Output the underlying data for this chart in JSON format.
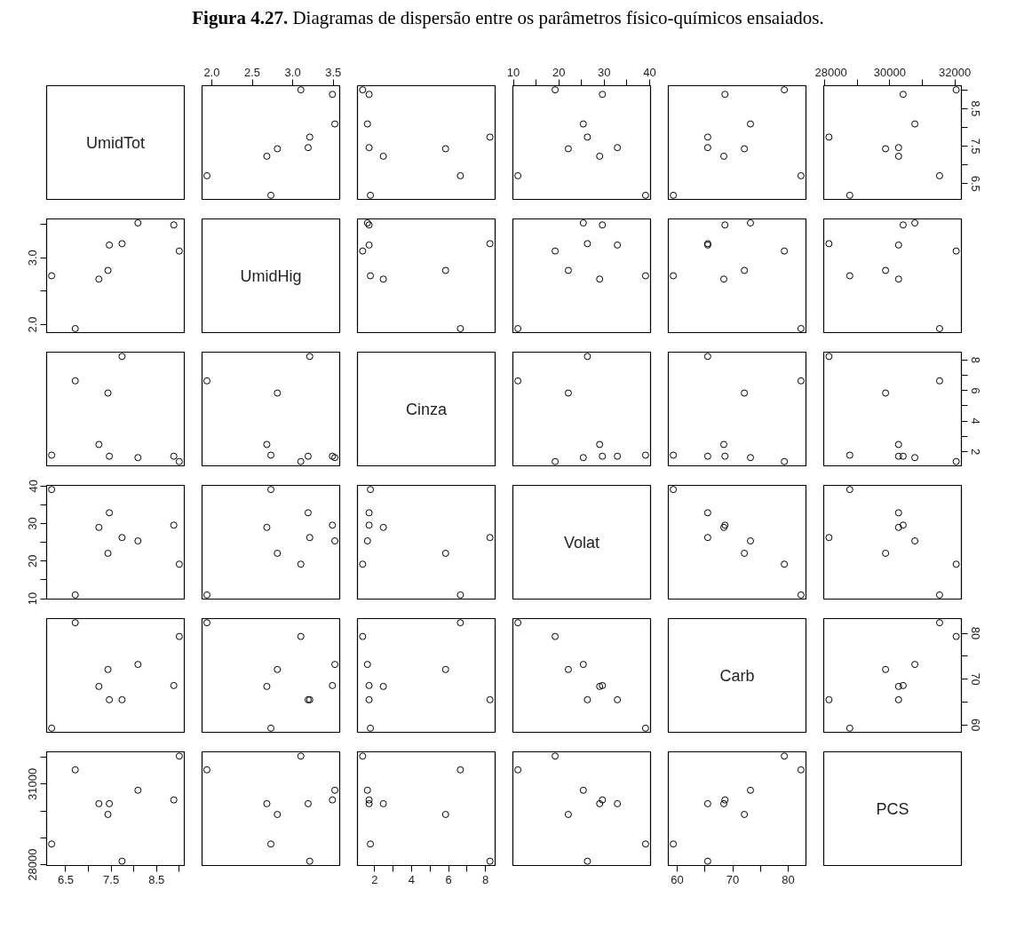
{
  "chart_data": [
    {
      "type": "other",
      "title": "Figura 4.27.",
      "subtitle": "Diagramas de dispersão entre os parâmetros físico-químicos ensaiados."
    },
    {
      "type": "other",
      "title": "UmidTot"
    },
    {
      "type": "scatter",
      "marker": "circle",
      "tick_labels": "x",
      "x": [
        3.21,
        2.73,
        2.81,
        3.19,
        2.68,
        3.49,
        3.52,
        1.94,
        3.1
      ],
      "values": [
        7.74,
        6.19,
        7.43,
        7.46,
        7.23,
        8.88,
        8.09,
        6.71,
        9.0
      ],
      "xlim": [
        1.88,
        3.58
      ],
      "ylim": [
        6.08,
        9.11
      ],
      "xticks": [
        {
          "value": 2,
          "label": "2.0"
        },
        2.5,
        {
          "value": 3,
          "label": "3.0"
        },
        3.5
      ]
    },
    {
      "type": "scatter",
      "marker": "circle",
      "x": [
        8.24,
        1.77,
        5.84,
        1.7,
        2.47,
        1.7,
        1.61,
        6.64,
        1.35
      ],
      "values": [
        7.74,
        6.19,
        7.43,
        7.46,
        7.23,
        8.88,
        8.09,
        6.71,
        9.0
      ],
      "xlim": [
        1.07,
        8.52
      ],
      "ylim": [
        6.08,
        9.11
      ]
    },
    {
      "type": "scatter",
      "marker": "circle",
      "tick_labels": "x",
      "x": [
        26.3,
        39.1,
        22.1,
        32.9,
        29.0,
        29.6,
        25.4,
        11.0,
        19.2
      ],
      "values": [
        7.74,
        6.19,
        7.43,
        7.46,
        7.23,
        8.88,
        8.09,
        6.71,
        9.0
      ],
      "xlim": [
        9.9,
        40.2
      ],
      "ylim": [
        6.08,
        9.11
      ],
      "xticks": [
        10,
        {
          "value": 15,
          "label": null
        },
        20,
        {
          "value": 25,
          "label": null
        },
        30,
        {
          "value": 35,
          "label": null
        },
        40
      ]
    },
    {
      "type": "scatter",
      "marker": "circle",
      "x": [
        65.5,
        59.3,
        72.1,
        65.5,
        68.4,
        68.6,
        73.2,
        82.3,
        79.3
      ],
      "values": [
        7.74,
        6.19,
        7.43,
        7.46,
        7.23,
        8.88,
        8.09,
        6.71,
        9.0
      ],
      "xlim": [
        58.4,
        83.2
      ],
      "ylim": [
        6.08,
        9.11
      ]
    },
    {
      "type": "scatter",
      "marker": "circle",
      "x": [
        28130,
        28770,
        29870,
        30270,
        30270,
        30410,
        30770,
        31530,
        32040
      ],
      "values": [
        7.74,
        6.19,
        7.43,
        7.46,
        7.23,
        8.88,
        8.09,
        6.71,
        9.0
      ],
      "xlim": [
        27970,
        32200
      ],
      "ylim": [
        6.08,
        9.11
      ],
      "xticks": [
        28000,
        {
          "value": 29000,
          "label": null
        },
        30000,
        {
          "value": 31000,
          "label": null
        },
        32000
      ],
      "yticks": [
        6.5,
        {
          "value": 7,
          "label": null
        },
        7.5,
        {
          "value": 8,
          "label": null
        },
        8.5,
        {
          "value": 9,
          "label": null
        }
      ]
    },
    {
      "type": "scatter",
      "marker": "circle",
      "tick_labels": "y",
      "x": [
        7.74,
        6.19,
        7.43,
        7.46,
        7.23,
        8.88,
        8.09,
        6.71,
        9.0
      ],
      "values": [
        3.21,
        2.73,
        2.81,
        3.19,
        2.68,
        3.49,
        3.52,
        1.94,
        3.1
      ],
      "xlim": [
        6.08,
        9.11
      ],
      "ylim": [
        1.88,
        3.58
      ],
      "yticks": [
        {
          "value": 2,
          "label": "2.0"
        },
        {
          "value": 2.5,
          "label": null
        },
        {
          "value": 3,
          "label": "3.0"
        },
        {
          "value": 3.5,
          "label": null
        }
      ]
    },
    {
      "type": "other",
      "title": "UmidHig"
    },
    {
      "type": "scatter",
      "marker": "circle",
      "x": [
        8.24,
        1.77,
        5.84,
        1.7,
        2.47,
        1.7,
        1.61,
        6.64,
        1.35
      ],
      "values": [
        3.21,
        2.73,
        2.81,
        3.19,
        2.68,
        3.49,
        3.52,
        1.94,
        3.1
      ],
      "xlim": [
        1.07,
        8.52
      ],
      "ylim": [
        1.88,
        3.58
      ]
    },
    {
      "type": "scatter",
      "marker": "circle",
      "x": [
        26.3,
        39.1,
        22.1,
        32.9,
        29.0,
        29.6,
        25.4,
        11.0,
        19.2
      ],
      "values": [
        3.21,
        2.73,
        2.81,
        3.19,
        2.68,
        3.49,
        3.52,
        1.94,
        3.1
      ],
      "xlim": [
        9.9,
        40.2
      ],
      "ylim": [
        1.88,
        3.58
      ]
    },
    {
      "type": "scatter",
      "marker": "circle",
      "x": [
        65.5,
        59.3,
        72.1,
        65.5,
        68.4,
        68.6,
        73.2,
        82.3,
        79.3
      ],
      "values": [
        3.21,
        2.73,
        2.81,
        3.19,
        2.68,
        3.49,
        3.52,
        1.94,
        3.1
      ],
      "xlim": [
        58.4,
        83.2
      ],
      "ylim": [
        1.88,
        3.58
      ]
    },
    {
      "type": "scatter",
      "marker": "circle",
      "x": [
        28130,
        28770,
        29870,
        30270,
        30270,
        30410,
        30770,
        31530,
        32040
      ],
      "values": [
        3.21,
        2.73,
        2.81,
        3.19,
        2.68,
        3.49,
        3.52,
        1.94,
        3.1
      ],
      "xlim": [
        27970,
        32200
      ],
      "ylim": [
        1.88,
        3.58
      ]
    },
    {
      "type": "scatter",
      "marker": "circle",
      "x": [
        7.74,
        6.19,
        7.43,
        7.46,
        7.23,
        8.88,
        8.09,
        6.71,
        9.0
      ],
      "values": [
        8.24,
        1.77,
        5.84,
        1.7,
        2.47,
        1.7,
        1.61,
        6.64,
        1.35
      ],
      "xlim": [
        6.08,
        9.11
      ],
      "ylim": [
        1.07,
        8.52
      ]
    },
    {
      "type": "scatter",
      "marker": "circle",
      "x": [
        3.21,
        2.73,
        2.81,
        3.19,
        2.68,
        3.49,
        3.52,
        1.94,
        3.1
      ],
      "values": [
        8.24,
        1.77,
        5.84,
        1.7,
        2.47,
        1.7,
        1.61,
        6.64,
        1.35
      ],
      "xlim": [
        1.88,
        3.58
      ],
      "ylim": [
        1.07,
        8.52
      ]
    },
    {
      "type": "other",
      "title": "Cinza"
    },
    {
      "type": "scatter",
      "marker": "circle",
      "x": [
        26.3,
        39.1,
        22.1,
        32.9,
        29.0,
        29.6,
        25.4,
        11.0,
        19.2
      ],
      "values": [
        8.24,
        1.77,
        5.84,
        1.7,
        2.47,
        1.7,
        1.61,
        6.64,
        1.35
      ],
      "xlim": [
        9.9,
        40.2
      ],
      "ylim": [
        1.07,
        8.52
      ]
    },
    {
      "type": "scatter",
      "marker": "circle",
      "x": [
        65.5,
        59.3,
        72.1,
        65.5,
        68.4,
        68.6,
        73.2,
        82.3,
        79.3
      ],
      "values": [
        8.24,
        1.77,
        5.84,
        1.7,
        2.47,
        1.7,
        1.61,
        6.64,
        1.35
      ],
      "xlim": [
        58.4,
        83.2
      ],
      "ylim": [
        1.07,
        8.52
      ]
    },
    {
      "type": "scatter",
      "marker": "circle",
      "tick_labels": "y",
      "x": [
        28130,
        28770,
        29870,
        30270,
        30270,
        30410,
        30770,
        31530,
        32040
      ],
      "values": [
        8.24,
        1.77,
        5.84,
        1.7,
        2.47,
        1.7,
        1.61,
        6.64,
        1.35
      ],
      "xlim": [
        27970,
        32200
      ],
      "ylim": [
        1.07,
        8.52
      ],
      "yticks": [
        2,
        {
          "value": 3,
          "label": null
        },
        4,
        {
          "value": 5,
          "label": null
        },
        6,
        {
          "value": 7,
          "label": null
        },
        8
      ]
    },
    {
      "type": "scatter",
      "marker": "circle",
      "tick_labels": "y",
      "x": [
        7.74,
        6.19,
        7.43,
        7.46,
        7.23,
        8.88,
        8.09,
        6.71,
        9.0
      ],
      "values": [
        26.3,
        39.1,
        22.1,
        32.9,
        29.0,
        29.6,
        25.4,
        11.0,
        19.2
      ],
      "xlim": [
        6.08,
        9.11
      ],
      "ylim": [
        9.9,
        40.2
      ],
      "yticks": [
        10,
        {
          "value": 15,
          "label": null
        },
        20,
        {
          "value": 25,
          "label": null
        },
        30,
        {
          "value": 35,
          "label": null
        },
        40
      ]
    },
    {
      "type": "scatter",
      "marker": "circle",
      "x": [
        3.21,
        2.73,
        2.81,
        3.19,
        2.68,
        3.49,
        3.52,
        1.94,
        3.1
      ],
      "values": [
        26.3,
        39.1,
        22.1,
        32.9,
        29.0,
        29.6,
        25.4,
        11.0,
        19.2
      ],
      "xlim": [
        1.88,
        3.58
      ],
      "ylim": [
        9.9,
        40.2
      ]
    },
    {
      "type": "scatter",
      "marker": "circle",
      "x": [
        8.24,
        1.77,
        5.84,
        1.7,
        2.47,
        1.7,
        1.61,
        6.64,
        1.35
      ],
      "values": [
        26.3,
        39.1,
        22.1,
        32.9,
        29.0,
        29.6,
        25.4,
        11.0,
        19.2
      ],
      "xlim": [
        1.07,
        8.52
      ],
      "ylim": [
        9.9,
        40.2
      ]
    },
    {
      "type": "other",
      "title": "Volat"
    },
    {
      "type": "scatter",
      "marker": "circle",
      "x": [
        65.5,
        59.3,
        72.1,
        65.5,
        68.4,
        68.6,
        73.2,
        82.3,
        79.3
      ],
      "values": [
        26.3,
        39.1,
        22.1,
        32.9,
        29.0,
        29.6,
        25.4,
        11.0,
        19.2
      ],
      "xlim": [
        58.4,
        83.2
      ],
      "ylim": [
        9.9,
        40.2
      ]
    },
    {
      "type": "scatter",
      "marker": "circle",
      "x": [
        28130,
        28770,
        29870,
        30270,
        30270,
        30410,
        30770,
        31530,
        32040
      ],
      "values": [
        26.3,
        39.1,
        22.1,
        32.9,
        29.0,
        29.6,
        25.4,
        11.0,
        19.2
      ],
      "xlim": [
        27970,
        32200
      ],
      "ylim": [
        9.9,
        40.2
      ]
    },
    {
      "type": "scatter",
      "marker": "circle",
      "x": [
        7.74,
        6.19,
        7.43,
        7.46,
        7.23,
        8.88,
        8.09,
        6.71,
        9.0
      ],
      "values": [
        65.5,
        59.3,
        72.1,
        65.5,
        68.4,
        68.6,
        73.2,
        82.3,
        79.3
      ],
      "xlim": [
        6.08,
        9.11
      ],
      "ylim": [
        58.4,
        83.2
      ]
    },
    {
      "type": "scatter",
      "marker": "circle",
      "x": [
        3.21,
        2.73,
        2.81,
        3.19,
        2.68,
        3.49,
        3.52,
        1.94,
        3.1
      ],
      "values": [
        65.5,
        59.3,
        72.1,
        65.5,
        68.4,
        68.6,
        73.2,
        82.3,
        79.3
      ],
      "xlim": [
        1.88,
        3.58
      ],
      "ylim": [
        58.4,
        83.2
      ]
    },
    {
      "type": "scatter",
      "marker": "circle",
      "x": [
        8.24,
        1.77,
        5.84,
        1.7,
        2.47,
        1.7,
        1.61,
        6.64,
        1.35
      ],
      "values": [
        65.5,
        59.3,
        72.1,
        65.5,
        68.4,
        68.6,
        73.2,
        82.3,
        79.3
      ],
      "xlim": [
        1.07,
        8.52
      ],
      "ylim": [
        58.4,
        83.2
      ]
    },
    {
      "type": "scatter",
      "marker": "circle",
      "x": [
        26.3,
        39.1,
        22.1,
        32.9,
        29.0,
        29.6,
        25.4,
        11.0,
        19.2
      ],
      "values": [
        65.5,
        59.3,
        72.1,
        65.5,
        68.4,
        68.6,
        73.2,
        82.3,
        79.3
      ],
      "xlim": [
        9.9,
        40.2
      ],
      "ylim": [
        58.4,
        83.2
      ]
    },
    {
      "type": "other",
      "title": "Carb"
    },
    {
      "type": "scatter",
      "marker": "circle",
      "tick_labels": "y",
      "x": [
        28130,
        28770,
        29870,
        30270,
        30270,
        30410,
        30770,
        31530,
        32040
      ],
      "values": [
        65.5,
        59.3,
        72.1,
        65.5,
        68.4,
        68.6,
        73.2,
        82.3,
        79.3
      ],
      "xlim": [
        27970,
        32200
      ],
      "ylim": [
        58.4,
        83.2
      ],
      "yticks": [
        60,
        {
          "value": 65,
          "label": null
        },
        70,
        {
          "value": 75,
          "label": null
        },
        80
      ]
    },
    {
      "type": "scatter",
      "marker": "circle",
      "x": [
        7.74,
        6.19,
        7.43,
        7.46,
        7.23,
        8.88,
        8.09,
        6.71,
        9.0
      ],
      "values": [
        28130,
        28770,
        29870,
        30270,
        30270,
        30410,
        30770,
        31530,
        32040
      ],
      "xlim": [
        6.08,
        9.11
      ],
      "ylim": [
        27970,
        32200
      ],
      "xticks": [
        6.5,
        {
          "value": 7,
          "label": null
        },
        7.5,
        {
          "value": 8,
          "label": null
        },
        8.5,
        {
          "value": 9,
          "label": null
        }
      ],
      "yticks": [
        28000,
        {
          "value": 29000,
          "label": null
        },
        {
          "value": 30000,
          "label": null
        },
        31000,
        {
          "value": 32000,
          "label": null
        }
      ]
    },
    {
      "type": "scatter",
      "marker": "circle",
      "x": [
        3.21,
        2.73,
        2.81,
        3.19,
        2.68,
        3.49,
        3.52,
        1.94,
        3.1
      ],
      "values": [
        28130,
        28770,
        29870,
        30270,
        30270,
        30410,
        30770,
        31530,
        32040
      ],
      "xlim": [
        1.88,
        3.58
      ],
      "ylim": [
        27970,
        32200
      ]
    },
    {
      "type": "scatter",
      "marker": "circle",
      "tick_labels": "x",
      "x": [
        8.24,
        1.77,
        5.84,
        1.7,
        2.47,
        1.7,
        1.61,
        6.64,
        1.35
      ],
      "values": [
        28130,
        28770,
        29870,
        30270,
        30270,
        30410,
        30770,
        31530,
        32040
      ],
      "xlim": [
        1.07,
        8.52
      ],
      "ylim": [
        27970,
        32200
      ],
      "xticks": [
        2,
        {
          "value": 3,
          "label": null
        },
        4,
        {
          "value": 5,
          "label": null
        },
        6,
        {
          "value": 7,
          "label": null
        },
        8
      ]
    },
    {
      "type": "scatter",
      "marker": "circle",
      "x": [
        26.3,
        39.1,
        22.1,
        32.9,
        29.0,
        29.6,
        25.4,
        11.0,
        19.2
      ],
      "values": [
        28130,
        28770,
        29870,
        30270,
        30270,
        30410,
        30770,
        31530,
        32040
      ],
      "xlim": [
        9.9,
        40.2
      ],
      "ylim": [
        27970,
        32200
      ]
    },
    {
      "type": "scatter",
      "marker": "circle",
      "tick_labels": "x",
      "x": [
        65.5,
        59.3,
        72.1,
        65.5,
        68.4,
        68.6,
        73.2,
        82.3,
        79.3
      ],
      "values": [
        28130,
        28770,
        29870,
        30270,
        30270,
        30410,
        30770,
        31530,
        32040
      ],
      "xlim": [
        58.4,
        83.2
      ],
      "ylim": [
        27970,
        32200
      ],
      "xticks": [
        60,
        {
          "value": 65,
          "label": null
        },
        70,
        {
          "value": 75,
          "label": null
        },
        80
      ]
    },
    {
      "type": "other",
      "title": "PCS"
    }
  ]
}
